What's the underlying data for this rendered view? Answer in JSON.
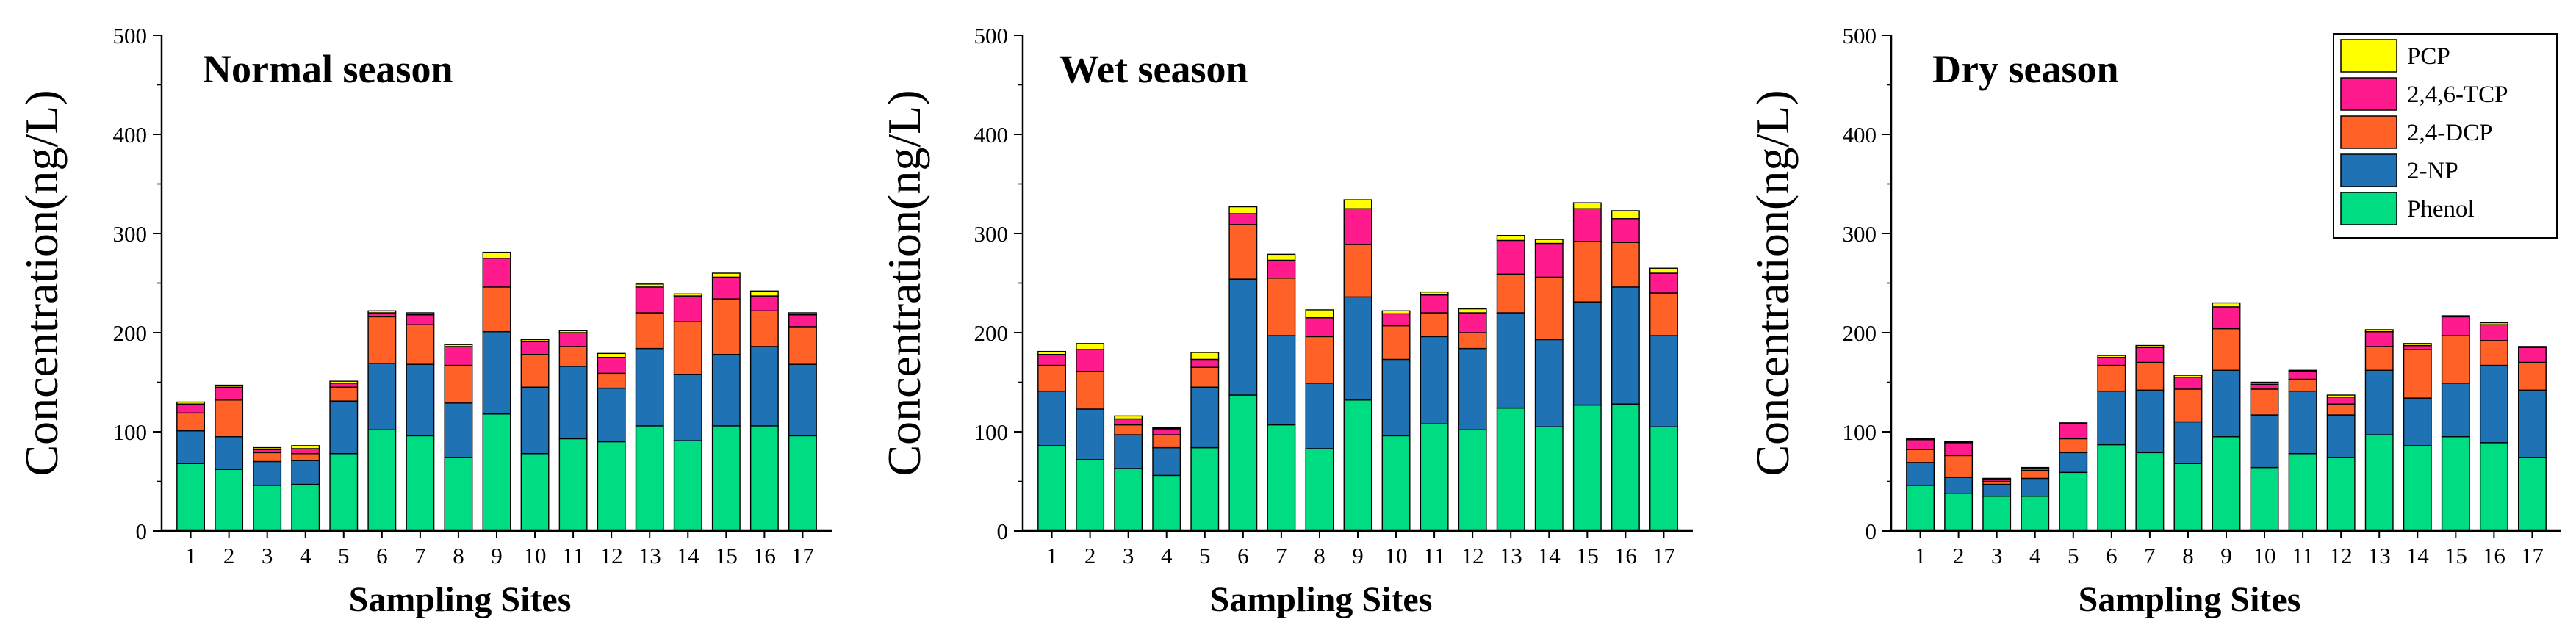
{
  "chart_data": [
    {
      "type": "bar",
      "stacked": true,
      "title": "Normal season",
      "xlabel": "Sampling Sites",
      "ylabel": "Concentration(ng/L)",
      "ylim": [
        0,
        500
      ],
      "yticks": [
        "0",
        "100",
        "200",
        "300",
        "400",
        "500"
      ],
      "categories": [
        "1",
        "2",
        "3",
        "4",
        "5",
        "6",
        "7",
        "8",
        "9",
        "10",
        "11",
        "12",
        "13",
        "14",
        "15",
        "16",
        "17"
      ],
      "series": [
        {
          "name": "Phenol",
          "values": [
            68,
            62,
            46,
            47,
            78,
            102,
            96,
            74,
            118,
            78,
            93,
            90,
            106,
            91,
            106,
            106,
            96
          ]
        },
        {
          "name": "2-NP",
          "values": [
            33,
            33,
            24,
            24,
            53,
            67,
            72,
            55,
            83,
            67,
            73,
            54,
            78,
            67,
            72,
            80,
            72
          ]
        },
        {
          "name": "2,4-DCP",
          "values": [
            18,
            37,
            9,
            7,
            14,
            47,
            40,
            38,
            45,
            33,
            20,
            15,
            36,
            53,
            56,
            36,
            38
          ]
        },
        {
          "name": "2,4,6-TCP",
          "values": [
            9,
            13,
            3,
            5,
            4,
            4,
            10,
            19,
            29,
            13,
            14,
            16,
            26,
            26,
            22,
            15,
            12
          ]
        },
        {
          "name": "PCP",
          "values": [
            2,
            2,
            2,
            3,
            2,
            2,
            2,
            2,
            6,
            2,
            2,
            4,
            3,
            2,
            4,
            5,
            2
          ]
        }
      ]
    },
    {
      "type": "bar",
      "stacked": true,
      "title": "Wet season",
      "xlabel": "Sampling Sites",
      "ylabel": "Concentration(ng/L)",
      "ylim": [
        0,
        500
      ],
      "yticks": [
        "0",
        "100",
        "200",
        "300",
        "400",
        "500"
      ],
      "categories": [
        "1",
        "2",
        "3",
        "4",
        "5",
        "6",
        "7",
        "8",
        "9",
        "10",
        "11",
        "12",
        "13",
        "14",
        "15",
        "16",
        "17"
      ],
      "series": [
        {
          "name": "Phenol",
          "values": [
            86,
            72,
            63,
            56,
            84,
            137,
            107,
            83,
            132,
            96,
            108,
            102,
            124,
            105,
            127,
            128,
            105
          ]
        },
        {
          "name": "2-NP",
          "values": [
            55,
            51,
            34,
            28,
            61,
            117,
            90,
            66,
            104,
            77,
            88,
            82,
            96,
            88,
            104,
            118,
            92
          ]
        },
        {
          "name": "2,4-DCP",
          "values": [
            26,
            38,
            10,
            13,
            20,
            55,
            58,
            47,
            53,
            34,
            24,
            16,
            39,
            63,
            61,
            45,
            43
          ]
        },
        {
          "name": "2,4,6-TCP",
          "values": [
            11,
            22,
            6,
            6,
            8,
            11,
            18,
            19,
            36,
            12,
            18,
            20,
            34,
            34,
            33,
            24,
            20
          ]
        },
        {
          "name": "PCP",
          "values": [
            3,
            6,
            3,
            1,
            7,
            7,
            6,
            8,
            9,
            3,
            3,
            4,
            5,
            4,
            6,
            8,
            5
          ]
        }
      ]
    },
    {
      "type": "bar",
      "stacked": true,
      "title": "Dry season",
      "xlabel": "Sampling Sites",
      "ylabel": "Concentration(ng/L)",
      "ylim": [
        0,
        500
      ],
      "yticks": [
        "0",
        "100",
        "200",
        "300",
        "400",
        "500"
      ],
      "categories": [
        "1",
        "2",
        "3",
        "4",
        "5",
        "6",
        "7",
        "8",
        "9",
        "10",
        "11",
        "12",
        "13",
        "14",
        "15",
        "16",
        "17"
      ],
      "series": [
        {
          "name": "Phenol",
          "values": [
            46,
            38,
            35,
            35,
            59,
            87,
            79,
            68,
            95,
            64,
            78,
            74,
            97,
            86,
            95,
            89,
            74
          ]
        },
        {
          "name": "2-NP",
          "values": [
            23,
            16,
            12,
            18,
            20,
            54,
            63,
            42,
            67,
            53,
            63,
            43,
            65,
            48,
            54,
            78,
            68
          ]
        },
        {
          "name": "2,4-DCP",
          "values": [
            13,
            22,
            3,
            8,
            14,
            26,
            28,
            33,
            42,
            26,
            12,
            11,
            24,
            49,
            48,
            25,
            28
          ]
        },
        {
          "name": "2,4,6-TCP",
          "values": [
            10,
            13,
            2,
            2,
            15,
            8,
            15,
            12,
            22,
            5,
            8,
            7,
            15,
            4,
            19,
            16,
            15
          ]
        },
        {
          "name": "PCP",
          "values": [
            1,
            1,
            1,
            1,
            1,
            2,
            2,
            2,
            4,
            2,
            1,
            2,
            2,
            2,
            1,
            2,
            1
          ]
        }
      ]
    }
  ],
  "legend": {
    "items": [
      {
        "name": "PCP",
        "color": "#ffff00"
      },
      {
        "name": "2,4,6-TCP",
        "color": "#ff1b8d"
      },
      {
        "name": "2,4-DCP",
        "color": "#ff6127"
      },
      {
        "name": "2-NP",
        "color": "#1f73b5"
      },
      {
        "name": "Phenol",
        "color": "#00dc82"
      }
    ]
  }
}
